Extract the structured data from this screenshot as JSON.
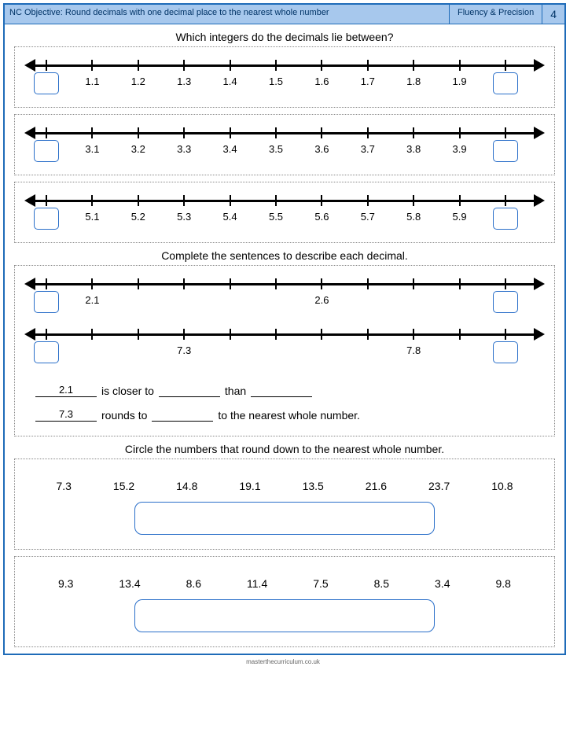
{
  "header": {
    "objective": "NC Objective: Round decimals with one decimal place to the nearest whole number",
    "section": "Fluency & Precision",
    "page": "4"
  },
  "q1": {
    "title": "Which integers do the decimals lie between?",
    "lines": [
      {
        "labels": [
          "1.1",
          "1.2",
          "1.3",
          "1.4",
          "1.5",
          "1.6",
          "1.7",
          "1.8",
          "1.9"
        ]
      },
      {
        "labels": [
          "3.1",
          "3.2",
          "3.3",
          "3.4",
          "3.5",
          "3.6",
          "3.7",
          "3.8",
          "3.9"
        ]
      },
      {
        "labels": [
          "5.1",
          "5.2",
          "5.3",
          "5.4",
          "5.5",
          "5.6",
          "5.7",
          "5.8",
          "5.9"
        ]
      }
    ]
  },
  "q2": {
    "title": "Complete the sentences to describe each decimal.",
    "lines": [
      {
        "marks": [
          {
            "pos": 1,
            "label": "2.1"
          },
          {
            "pos": 6,
            "label": "2.6"
          }
        ]
      },
      {
        "marks": [
          {
            "pos": 3,
            "label": "7.3"
          },
          {
            "pos": 8,
            "label": "7.8"
          }
        ]
      }
    ],
    "sentence1": {
      "prefill": "2.1",
      "t1": "is closer to",
      "t2": "than"
    },
    "sentence2": {
      "prefill": "7.3",
      "t1": "rounds to",
      "t2": "to the nearest whole number."
    }
  },
  "q3": {
    "title": "Circle the numbers that round down to the nearest whole number.",
    "rows": [
      [
        "7.3",
        "15.2",
        "14.8",
        "19.1",
        "13.5",
        "21.6",
        "23.7",
        "10.8"
      ],
      [
        "9.3",
        "13.4",
        "8.6",
        "11.4",
        "7.5",
        "8.5",
        "3.4",
        "9.8"
      ]
    ]
  },
  "footer": "masterthecurriculum.co.uk",
  "style": {
    "border_color": "#1e6bb8",
    "header_bg": "#a7c8ed",
    "box_border": "#2a6fc9",
    "dotted_border": "#888888",
    "font": "Comic Sans MS"
  }
}
